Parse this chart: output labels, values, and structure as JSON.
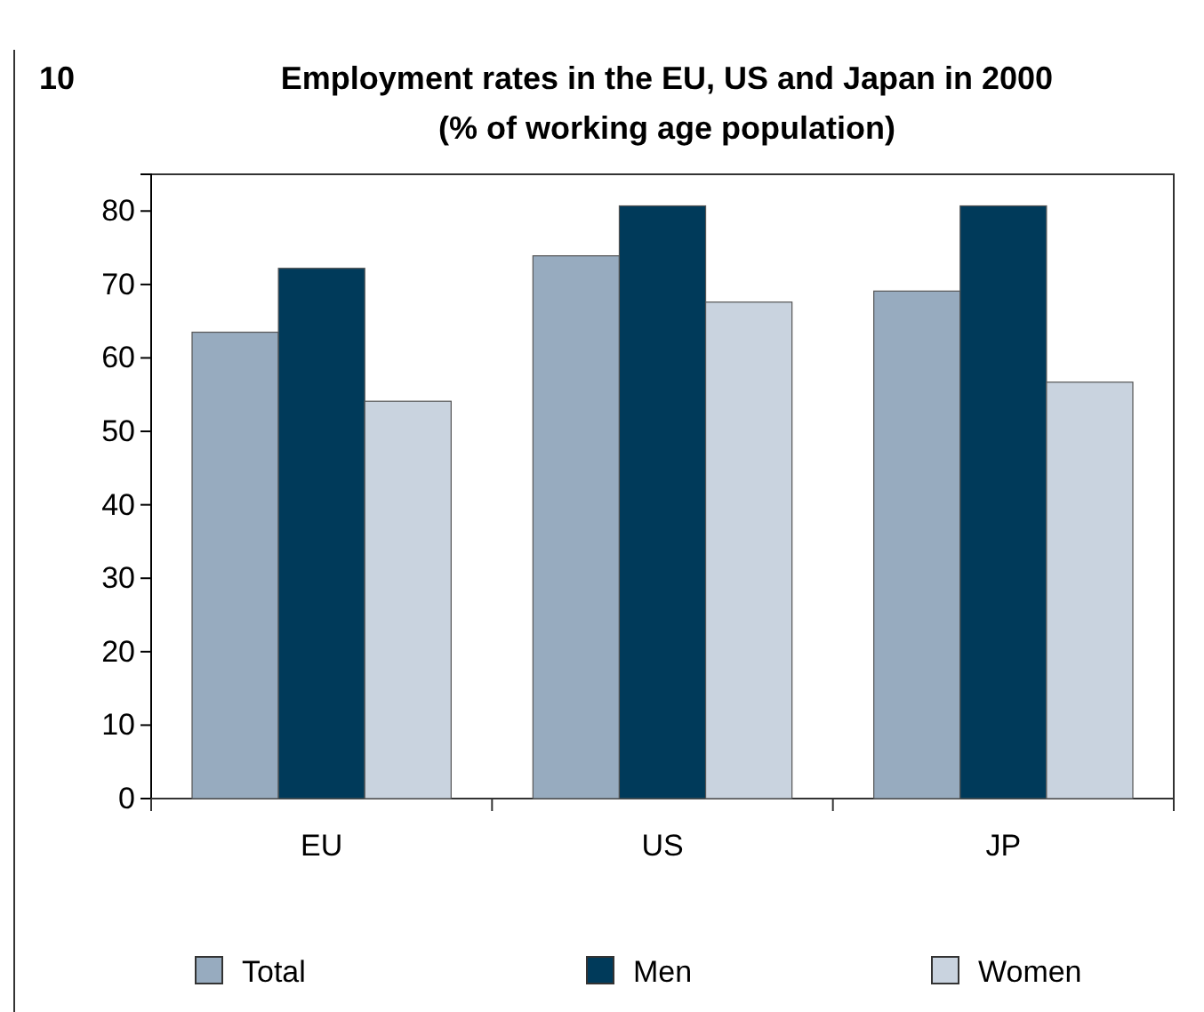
{
  "chart_data": {
    "type": "bar",
    "title": "Employment rates in the EU, US and Japan in 2000",
    "subtitle": "(% of working age population)",
    "annotations": [
      "10"
    ],
    "categories": [
      "EU",
      "US",
      "JP"
    ],
    "series": [
      {
        "name": "Total",
        "color": "#97abbf",
        "values": [
          63.5,
          73.9,
          69.1
        ]
      },
      {
        "name": "Men",
        "color": "#003a5a",
        "values": [
          72.2,
          80.7,
          80.7
        ]
      },
      {
        "name": "Women",
        "color": "#c9d3df",
        "values": [
          54.1,
          67.6,
          56.7
        ]
      }
    ],
    "ylim": [
      0,
      85
    ],
    "yticks": [
      0,
      10,
      20,
      30,
      40,
      50,
      60,
      70,
      80
    ],
    "grid": false,
    "legend": "bottom"
  }
}
